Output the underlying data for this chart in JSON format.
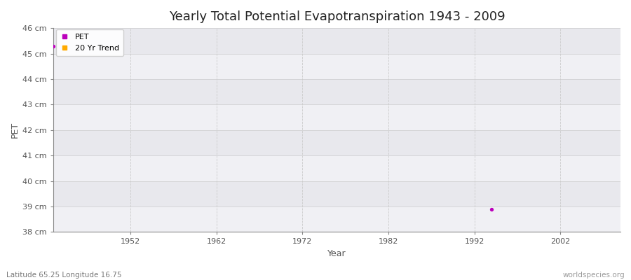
{
  "title": "Yearly Total Potential Evapotranspiration 1943 - 2009",
  "xlabel": "Year",
  "ylabel": "PET",
  "subtitle_left": "Latitude 65.25 Longitude 16.75",
  "subtitle_right": "worldspecies.org",
  "xlim": [
    1943,
    2009
  ],
  "ylim": [
    38,
    46
  ],
  "ytick_labels": [
    "38 cm",
    "39 cm",
    "40 cm",
    "41 cm",
    "42 cm",
    "43 cm",
    "44 cm",
    "45 cm",
    "46 cm"
  ],
  "ytick_values": [
    38,
    39,
    40,
    41,
    42,
    43,
    44,
    45,
    46
  ],
  "xtick_values": [
    1952,
    1962,
    1972,
    1982,
    1992,
    2002
  ],
  "pet_points": [
    [
      1943,
      45.28
    ],
    [
      1994,
      38.88
    ]
  ],
  "pet_color": "#bb00bb",
  "trend_color": "#ffaa00",
  "figure_bg": "#ffffff",
  "plot_bg_light": "#f5f5f7",
  "plot_bg_dark": "#ebebef",
  "grid_color": "#cccccc",
  "spine_color": "#888888",
  "tick_color": "#555555",
  "legend_labels": [
    "PET",
    "20 Yr Trend"
  ],
  "title_fontsize": 13,
  "axis_label_fontsize": 9,
  "tick_fontsize": 8,
  "subtitle_fontsize": 7.5,
  "band_colors": [
    "#f0f0f4",
    "#e8e8ed"
  ]
}
